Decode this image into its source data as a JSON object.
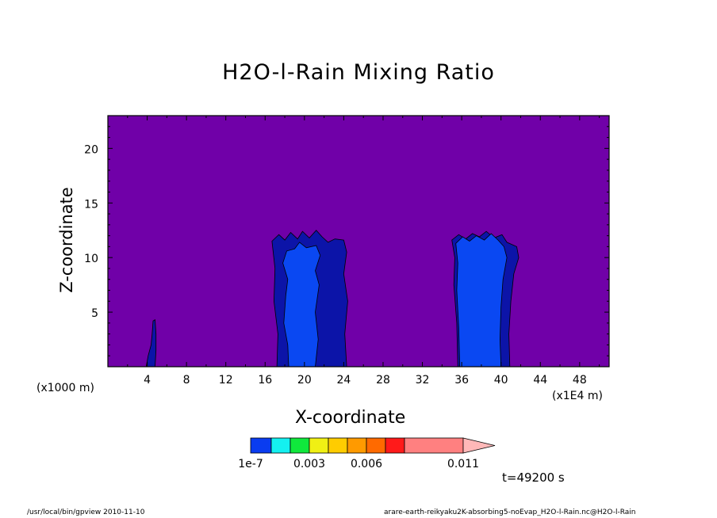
{
  "chart_data": {
    "type": "heatmap",
    "title": "H2O-l-Rain Mixing Ratio",
    "xlabel": "X-coordinate",
    "ylabel": "Z-coordinate",
    "x_unit_left": "(x1000 m)",
    "x_unit_right": "(x1E4 m)",
    "xlim": [
      0,
      51
    ],
    "ylim": [
      0,
      23
    ],
    "x_ticks": [
      "4",
      "8",
      "12",
      "16",
      "20",
      "24",
      "28",
      "32",
      "36",
      "40",
      "44",
      "48"
    ],
    "y_ticks": [
      "5",
      "10",
      "15",
      "20"
    ],
    "background_level": "below 1e-7",
    "colorbar": {
      "colors": [
        "#0a3cf0",
        "#14f0f0",
        "#10e83c",
        "#f0f014",
        "#ffcc00",
        "#ff9a00",
        "#ff6a00",
        "#ff1a1a",
        "#ff8080",
        "#ffb8b8"
      ],
      "labels": [
        "1e-7",
        "0.003",
        "0.006",
        "0.011"
      ],
      "label_levels": [
        1e-07,
        0.003,
        0.006,
        0.011
      ]
    },
    "features": [
      {
        "x_range": [
          4,
          5
        ],
        "z_top": 4.3,
        "level": "dark blue"
      },
      {
        "x_range": [
          17,
          25
        ],
        "z_top": 12.5,
        "level": "dark blue to blue"
      },
      {
        "x_range": [
          35,
          42
        ],
        "z_top": 12.4,
        "level": "blue"
      }
    ],
    "time_label": "t=49200 s"
  },
  "colors": {
    "background_fill": "#7000a8",
    "dark_blue": "#0c14a8",
    "mid_blue": "#0a48f2"
  },
  "footer": {
    "left": "/usr/local/bin/gpview  2010-11-10",
    "right": "arare-earth-reikyaku2K-absorbing5-noEvap_H2O-l-Rain.nc@H2O-l-Rain"
  }
}
